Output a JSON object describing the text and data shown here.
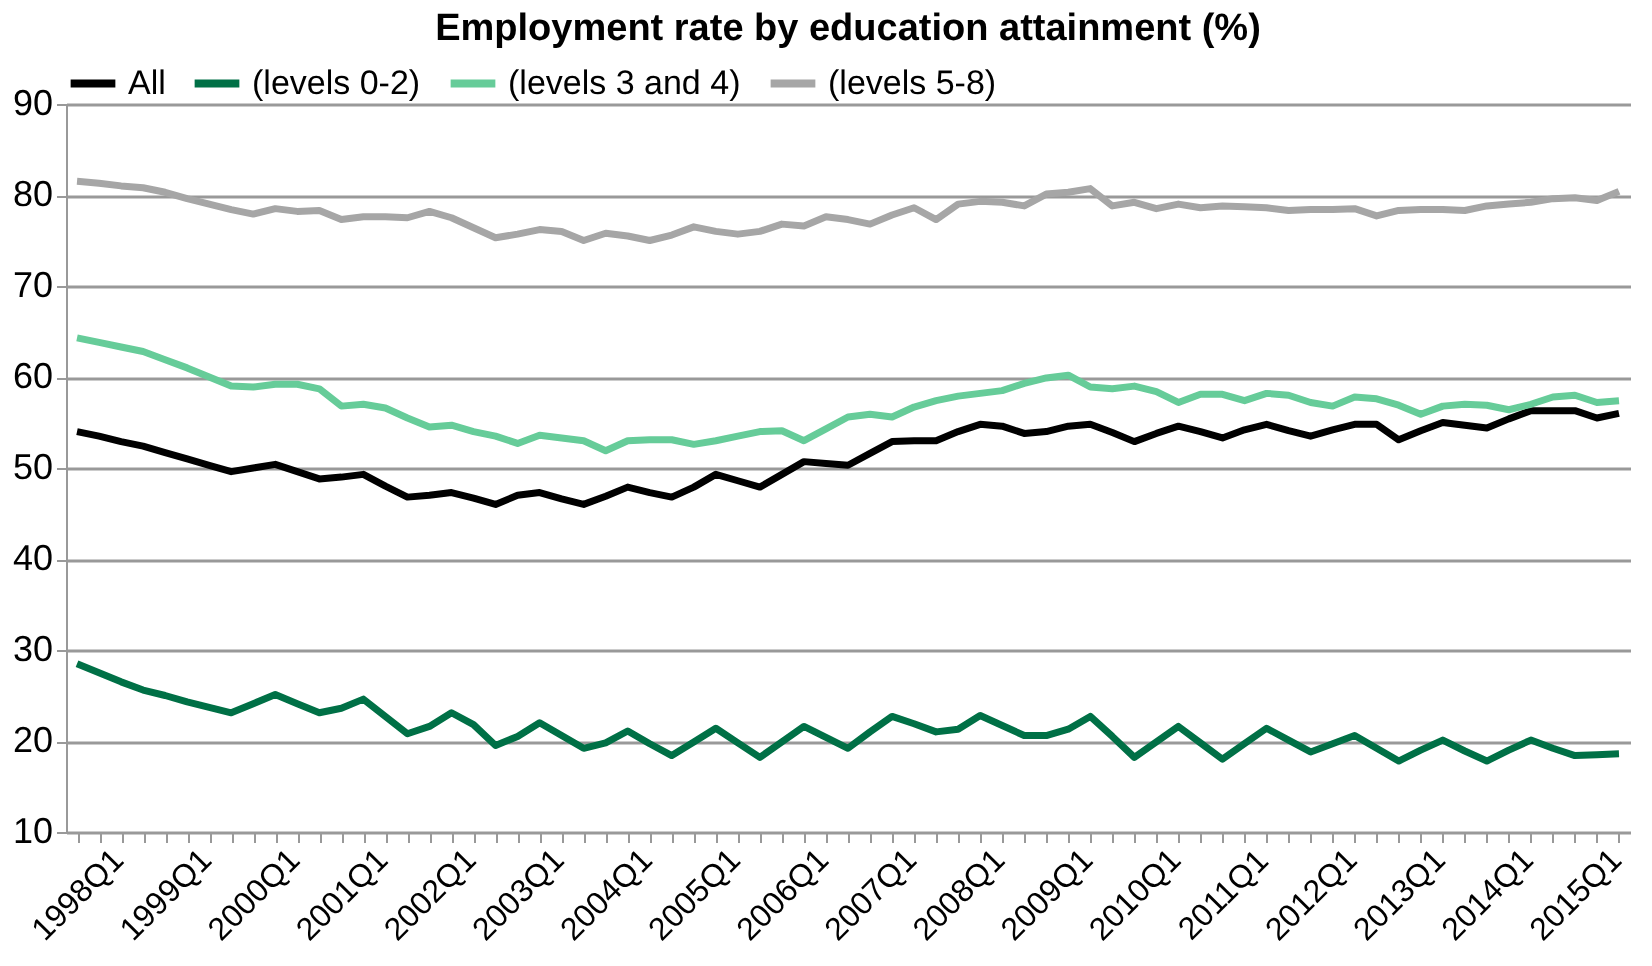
{
  "chart_data": {
    "type": "line",
    "title": "Employment rate by education attainment (%)",
    "categories": [
      "1998Q1",
      null,
      null,
      null,
      "1999Q1",
      null,
      null,
      null,
      "2000Q1",
      null,
      null,
      null,
      "2001Q1",
      null,
      null,
      null,
      "2002Q1",
      null,
      null,
      null,
      "2003Q1",
      null,
      null,
      null,
      "2004Q1",
      null,
      null,
      null,
      "2005Q1",
      null,
      null,
      null,
      "2006Q1",
      null,
      null,
      null,
      "2007Q1",
      null,
      null,
      null,
      "2008Q1",
      null,
      null,
      null,
      "2009Q1",
      null,
      null,
      null,
      "2010Q1",
      null,
      null,
      null,
      "2011Q1",
      null,
      null,
      null,
      "2012Q1",
      null,
      null,
      null,
      "2013Q1",
      null,
      null,
      null,
      "2014Q1",
      null,
      null,
      null,
      "2015Q1",
      null,
      null
    ],
    "series": [
      {
        "name": "All",
        "color": "#000000",
        "values": [
          54.0,
          53.5,
          52.9,
          52.4,
          51.7,
          51.0,
          50.3,
          49.6,
          50.0,
          50.4,
          49.6,
          48.8,
          49.0,
          49.3,
          48.0,
          46.8,
          47.0,
          47.3,
          46.7,
          46.0,
          47.0,
          47.3,
          46.6,
          46.0,
          46.9,
          47.9,
          47.3,
          46.8,
          47.9,
          49.3,
          48.6,
          47.9,
          49.3,
          50.7,
          50.5,
          50.3,
          51.6,
          52.9,
          53.0,
          53.0,
          54.0,
          54.8,
          54.6,
          53.8,
          54.0,
          54.6,
          54.8,
          53.9,
          52.9,
          53.8,
          54.6,
          54.0,
          53.3,
          54.2,
          54.8,
          54.1,
          53.5,
          54.2,
          54.8,
          54.8,
          53.1,
          54.1,
          55.0,
          54.7,
          54.4,
          55.4,
          56.3,
          56.3,
          56.3,
          55.5,
          56.0
        ]
      },
      {
        "name": "(levels 0-2)",
        "color": "#007046",
        "values": [
          28.5,
          27.5,
          26.5,
          25.6,
          25.0,
          24.3,
          23.7,
          23.1,
          24.1,
          25.1,
          24.1,
          23.1,
          23.6,
          24.6,
          22.7,
          20.8,
          21.6,
          23.1,
          21.8,
          19.5,
          20.5,
          22.0,
          20.6,
          19.2,
          19.8,
          21.1,
          19.7,
          18.4,
          19.9,
          21.4,
          19.8,
          18.2,
          19.9,
          21.6,
          20.4,
          19.2,
          21.0,
          22.7,
          21.9,
          21.0,
          21.3,
          22.8,
          21.7,
          20.6,
          20.6,
          21.3,
          22.7,
          20.5,
          18.2,
          19.9,
          21.6,
          19.8,
          18.0,
          19.7,
          21.4,
          20.1,
          18.8,
          19.7,
          20.6,
          19.2,
          17.8,
          19.0,
          20.1,
          18.9,
          17.8,
          19.0,
          20.1,
          19.2,
          18.4,
          18.5,
          18.6
        ]
      },
      {
        "name": "(levels 3 and 4)",
        "color": "#66cc99",
        "values": [
          64.3,
          63.8,
          63.3,
          62.8,
          61.9,
          61.0,
          60.0,
          59.0,
          58.9,
          59.2,
          59.2,
          58.7,
          56.8,
          57.0,
          56.6,
          55.5,
          54.5,
          54.7,
          54.0,
          53.5,
          52.7,
          53.6,
          53.3,
          53.0,
          51.9,
          53.0,
          53.1,
          53.1,
          52.6,
          53.0,
          53.5,
          54.0,
          54.1,
          53.0,
          54.3,
          55.6,
          55.9,
          55.6,
          56.7,
          57.4,
          57.9,
          58.2,
          58.5,
          59.3,
          59.9,
          60.2,
          58.9,
          58.7,
          59.0,
          58.4,
          57.2,
          58.1,
          58.1,
          57.4,
          58.2,
          58.0,
          57.2,
          56.8,
          57.8,
          57.6,
          56.9,
          55.9,
          56.8,
          57.0,
          56.9,
          56.4,
          57.0,
          57.8,
          58.0,
          57.2,
          57.4
        ]
      },
      {
        "name": "(levels 5-8)",
        "color": "#a6a6a6",
        "values": [
          81.5,
          81.3,
          81.0,
          80.8,
          80.3,
          79.6,
          79.0,
          78.4,
          77.9,
          78.5,
          78.2,
          78.3,
          77.3,
          77.6,
          77.6,
          77.5,
          78.2,
          77.5,
          76.4,
          75.3,
          75.7,
          76.2,
          76.0,
          75.0,
          75.8,
          75.5,
          75.0,
          75.6,
          76.5,
          76.0,
          75.7,
          76.0,
          76.8,
          76.6,
          77.6,
          77.3,
          76.8,
          77.8,
          78.6,
          77.3,
          79.0,
          79.3,
          79.2,
          78.8,
          80.1,
          80.3,
          80.7,
          78.8,
          79.2,
          78.5,
          79.0,
          78.6,
          78.8,
          78.7,
          78.6,
          78.3,
          78.4,
          78.4,
          78.5,
          77.7,
          78.3,
          78.4,
          78.4,
          78.3,
          78.8,
          79.0,
          79.2,
          79.6,
          79.7,
          79.4,
          80.4
        ]
      }
    ],
    "ylim": [
      10,
      90
    ],
    "yticks": [
      10,
      20,
      30,
      40,
      50,
      60,
      70,
      80,
      90
    ],
    "grid": "y",
    "legend": "top"
  }
}
